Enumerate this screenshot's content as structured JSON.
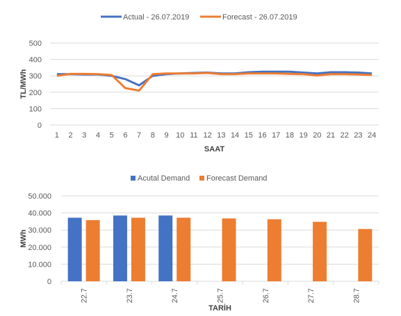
{
  "chart_data": [
    {
      "type": "line",
      "legend_position": "top",
      "grid": true,
      "xlabel": "SAAT",
      "ylabel": "TL/MWh",
      "ylim": [
        0,
        500
      ],
      "yticks": [
        "0",
        "100",
        "200",
        "300",
        "400",
        "500"
      ],
      "x": [
        "1",
        "2",
        "3",
        "4",
        "5",
        "6",
        "7",
        "8",
        "9",
        "10",
        "11",
        "12",
        "13",
        "14",
        "15",
        "16",
        "17",
        "18",
        "19",
        "20",
        "21",
        "22",
        "23",
        "24"
      ],
      "series": [
        {
          "name": "Actual - 26.07.2019",
          "color": "#4472C4",
          "values": [
            310,
            310,
            308,
            308,
            300,
            280,
            242,
            300,
            310,
            315,
            318,
            320,
            315,
            315,
            322,
            325,
            325,
            325,
            320,
            315,
            322,
            322,
            320,
            315
          ]
        },
        {
          "name": "Forecast - 26.07.2019",
          "color": "#ED7D31",
          "values": [
            300,
            312,
            312,
            310,
            305,
            225,
            210,
            310,
            315,
            315,
            315,
            318,
            310,
            310,
            315,
            315,
            315,
            312,
            310,
            302,
            310,
            310,
            308,
            305
          ]
        }
      ]
    },
    {
      "type": "bar",
      "legend_position": "top",
      "grid": true,
      "xlabel": "TARİH",
      "ylabel": "MWh",
      "ylim": [
        0,
        50000
      ],
      "yticks": [
        "0",
        "10.000",
        "20.000",
        "30.000",
        "40.000",
        "50.000"
      ],
      "categories": [
        "22.7",
        "23.7",
        "24.7",
        "25.7",
        "26.7",
        "27.7",
        "28.7"
      ],
      "series": [
        {
          "name": "Acutal Demand",
          "color": "#4472C4",
          "values": [
            37200,
            38500,
            38500,
            null,
            null,
            null,
            null
          ]
        },
        {
          "name": "Forecast Demand",
          "color": "#ED7D31",
          "values": [
            35800,
            37200,
            37200,
            36800,
            36300,
            34800,
            30600
          ]
        }
      ]
    }
  ]
}
